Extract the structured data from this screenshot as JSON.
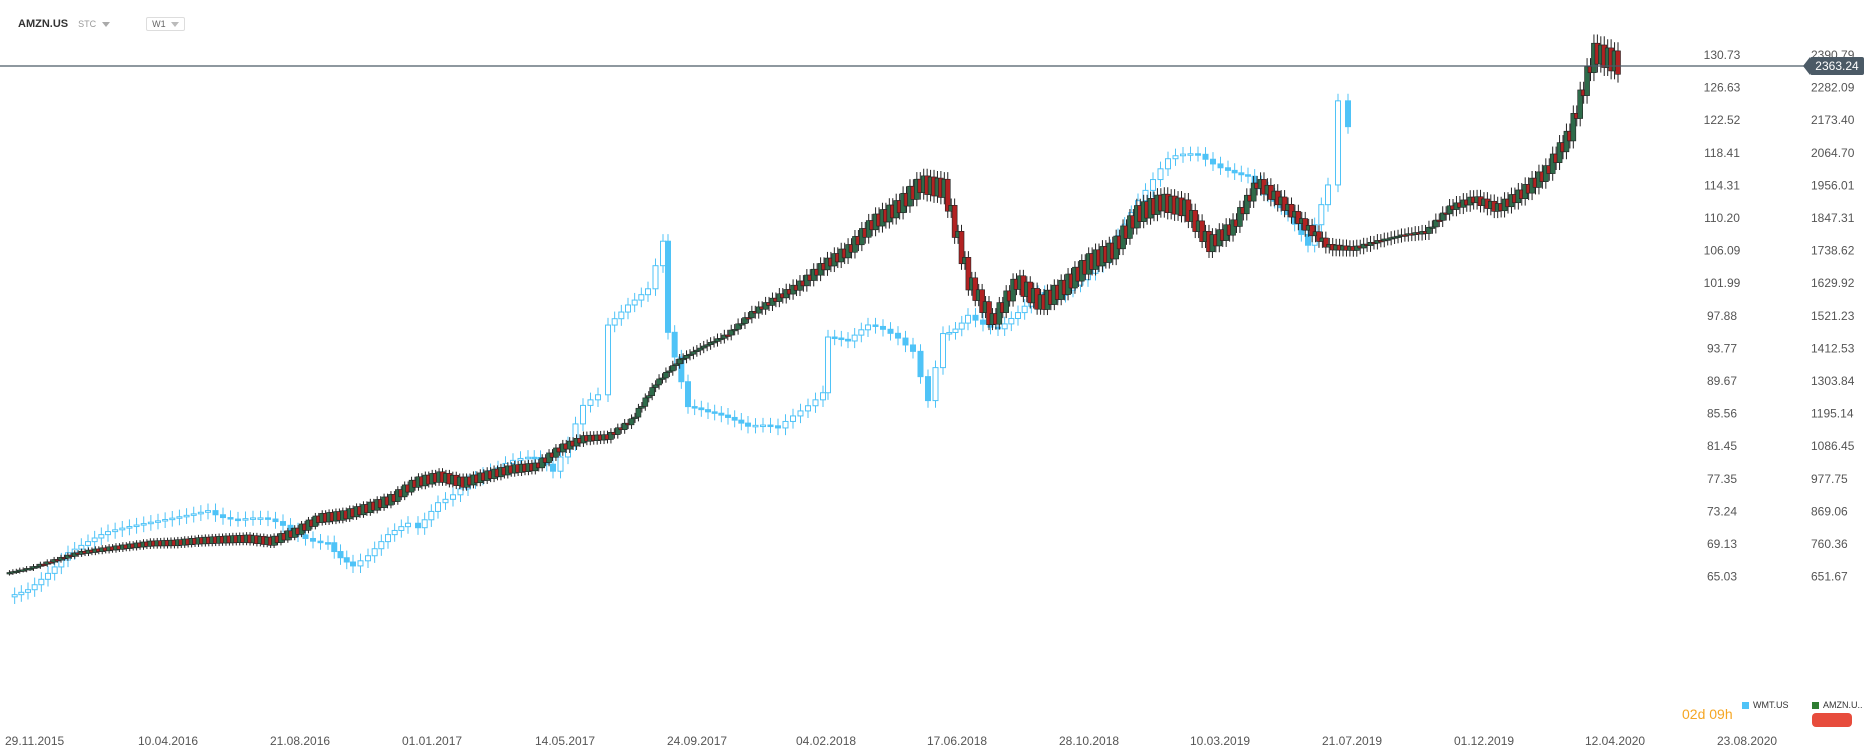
{
  "header": {
    "symbol": "AMZN.US",
    "mode": "STC",
    "timeframe": "W1"
  },
  "price_tag": "2363.24",
  "timer": {
    "days": "02d",
    "hours": "09h"
  },
  "legend": [
    {
      "label": "WMT.US",
      "color": "#4fc3f7"
    },
    {
      "label": "AMZN.U..",
      "color": "#2e7d32"
    }
  ],
  "colors": {
    "up": "#2e6b4a",
    "down": "#b22222",
    "wmt": "#4fc3f7",
    "hline": "#4b5a66"
  },
  "chart_data": {
    "type": "candlestick",
    "series": [
      {
        "name": "AMZN.US",
        "axis": "right"
      },
      {
        "name": "WMT.US",
        "axis": "left"
      }
    ],
    "y_left_ticks": [
      "130.73",
      "126.63",
      "122.52",
      "118.41",
      "114.31",
      "110.20",
      "106.09",
      "101.99",
      "97.88",
      "93.77",
      "89.67",
      "85.56",
      "81.45",
      "77.35",
      "73.24",
      "69.13",
      "65.03"
    ],
    "y_right_ticks": [
      "2390.79",
      "2282.09",
      "2173.40",
      "2064.70",
      "1956.01",
      "1847.31",
      "1738.62",
      "1629.92",
      "1521.23",
      "1412.53",
      "1303.84",
      "1195.14",
      "1086.45",
      "977.75",
      "869.06",
      "760.36",
      "651.67"
    ],
    "x_ticks": [
      "29.11.2015",
      "10.04.2016",
      "21.08.2016",
      "01.01.2017",
      "14.05.2017",
      "24.09.2017",
      "04.02.2018",
      "17.06.2018",
      "28.10.2018",
      "10.03.2019",
      "21.07.2019",
      "01.12.2019",
      "12.04.2020",
      "23.08.2020"
    ],
    "last_price": 2363.24,
    "amzn_weekly_close_approx": [
      [
        0,
        663
      ],
      [
        13,
        680
      ],
      [
        26,
        706
      ],
      [
        39,
        730
      ],
      [
        52,
        742
      ],
      [
        65,
        752
      ],
      [
        78,
        762
      ],
      [
        91,
        764
      ],
      [
        104,
        771
      ],
      [
        117,
        775
      ],
      [
        130,
        778
      ],
      [
        143,
        769
      ],
      [
        156,
        800
      ],
      [
        169,
        846
      ],
      [
        182,
        856
      ],
      [
        195,
        880
      ],
      [
        208,
        910
      ],
      [
        221,
        965
      ],
      [
        234,
        985
      ],
      [
        247,
        965
      ],
      [
        260,
        990
      ],
      [
        273,
        1010
      ],
      [
        286,
        1018
      ],
      [
        299,
        1078
      ],
      [
        312,
        1112
      ],
      [
        325,
        1117
      ],
      [
        338,
        1172
      ],
      [
        351,
        1295
      ],
      [
        364,
        1375
      ],
      [
        377,
        1420
      ],
      [
        390,
        1460
      ],
      [
        403,
        1530
      ],
      [
        416,
        1578
      ],
      [
        429,
        1625
      ],
      [
        442,
        1690
      ],
      [
        455,
        1740
      ],
      [
        468,
        1830
      ],
      [
        481,
        1880
      ],
      [
        494,
        1960
      ],
      [
        507,
        1945
      ],
      [
        520,
        1640
      ],
      [
        533,
        1500
      ],
      [
        546,
        1636
      ],
      [
        559,
        1562
      ],
      [
        572,
        1620
      ],
      [
        585,
        1700
      ],
      [
        598,
        1740
      ],
      [
        611,
        1860
      ],
      [
        624,
        1900
      ],
      [
        637,
        1880
      ],
      [
        650,
        1760
      ],
      [
        663,
        1820
      ],
      [
        676,
        1965
      ],
      [
        689,
        1900
      ],
      [
        702,
        1820
      ],
      [
        715,
        1750
      ],
      [
        728,
        1745
      ],
      [
        741,
        1770
      ],
      [
        754,
        1790
      ],
      [
        767,
        1800
      ],
      [
        780,
        1880
      ],
      [
        793,
        1910
      ],
      [
        806,
        1880
      ],
      [
        819,
        1930
      ],
      [
        832,
        2000
      ],
      [
        845,
        2130
      ],
      [
        858,
        2400
      ],
      [
        871,
        2363
      ]
    ]
  }
}
